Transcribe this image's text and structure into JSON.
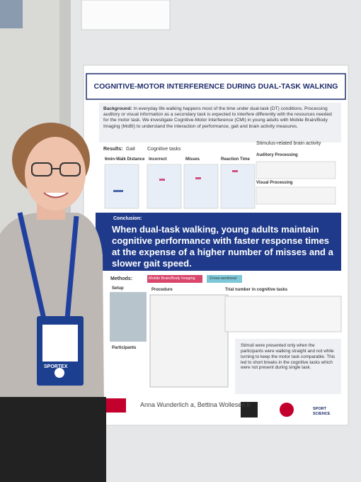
{
  "poster": {
    "title": "COGNITIVE-MOTOR INTERFERENCE DURING DUAL-TASK WALKING",
    "background": {
      "label": "Background:",
      "text": "In everyday life walking happens most of the time under dual-task (DT) conditions. Processing auditory or visual information as a secondary task is expected to interfere differently with the resources needed for the motor task. We investigate Cognitive-Motor Interference (CMI) in young adults with Mobile Brain/Body Imaging (MoBI) to understand the interaction of performance, gait and brain activity measures."
    },
    "results": {
      "label": "Results:",
      "groups": [
        "Gait",
        "Cognitive tasks",
        "Stimulus-related brain activity"
      ],
      "panels": [
        "6min-Walk Distance",
        "Incorrect",
        "Misses",
        "Reaction Time",
        "Auditory Processing",
        "Visual Processing"
      ]
    },
    "conclusion": {
      "label": "Conclusion:",
      "text": "When dual-task walking, young adults maintain cognitive performance with faster response times at the expense of a higher number of misses and a slower gait speed."
    },
    "methods": {
      "label": "Methods:",
      "tags": [
        "Mobile Brain/Body Imaging",
        "Cross-sectional"
      ],
      "sections": [
        "Setup",
        "Procedure",
        "Trial number in cognitive tasks",
        "Participants"
      ],
      "note": "Stimuli were presented only when the participants were walking straight and not while turning to keep the motor task comparable. This led to short breaks in the cognitive tasks which were not present during single task."
    },
    "authors": "Anna Wunderlich a, Bettina Wollesen b",
    "logo": "SPORT SCIENCE"
  },
  "badge": {
    "brand": "SPORTEX"
  }
}
